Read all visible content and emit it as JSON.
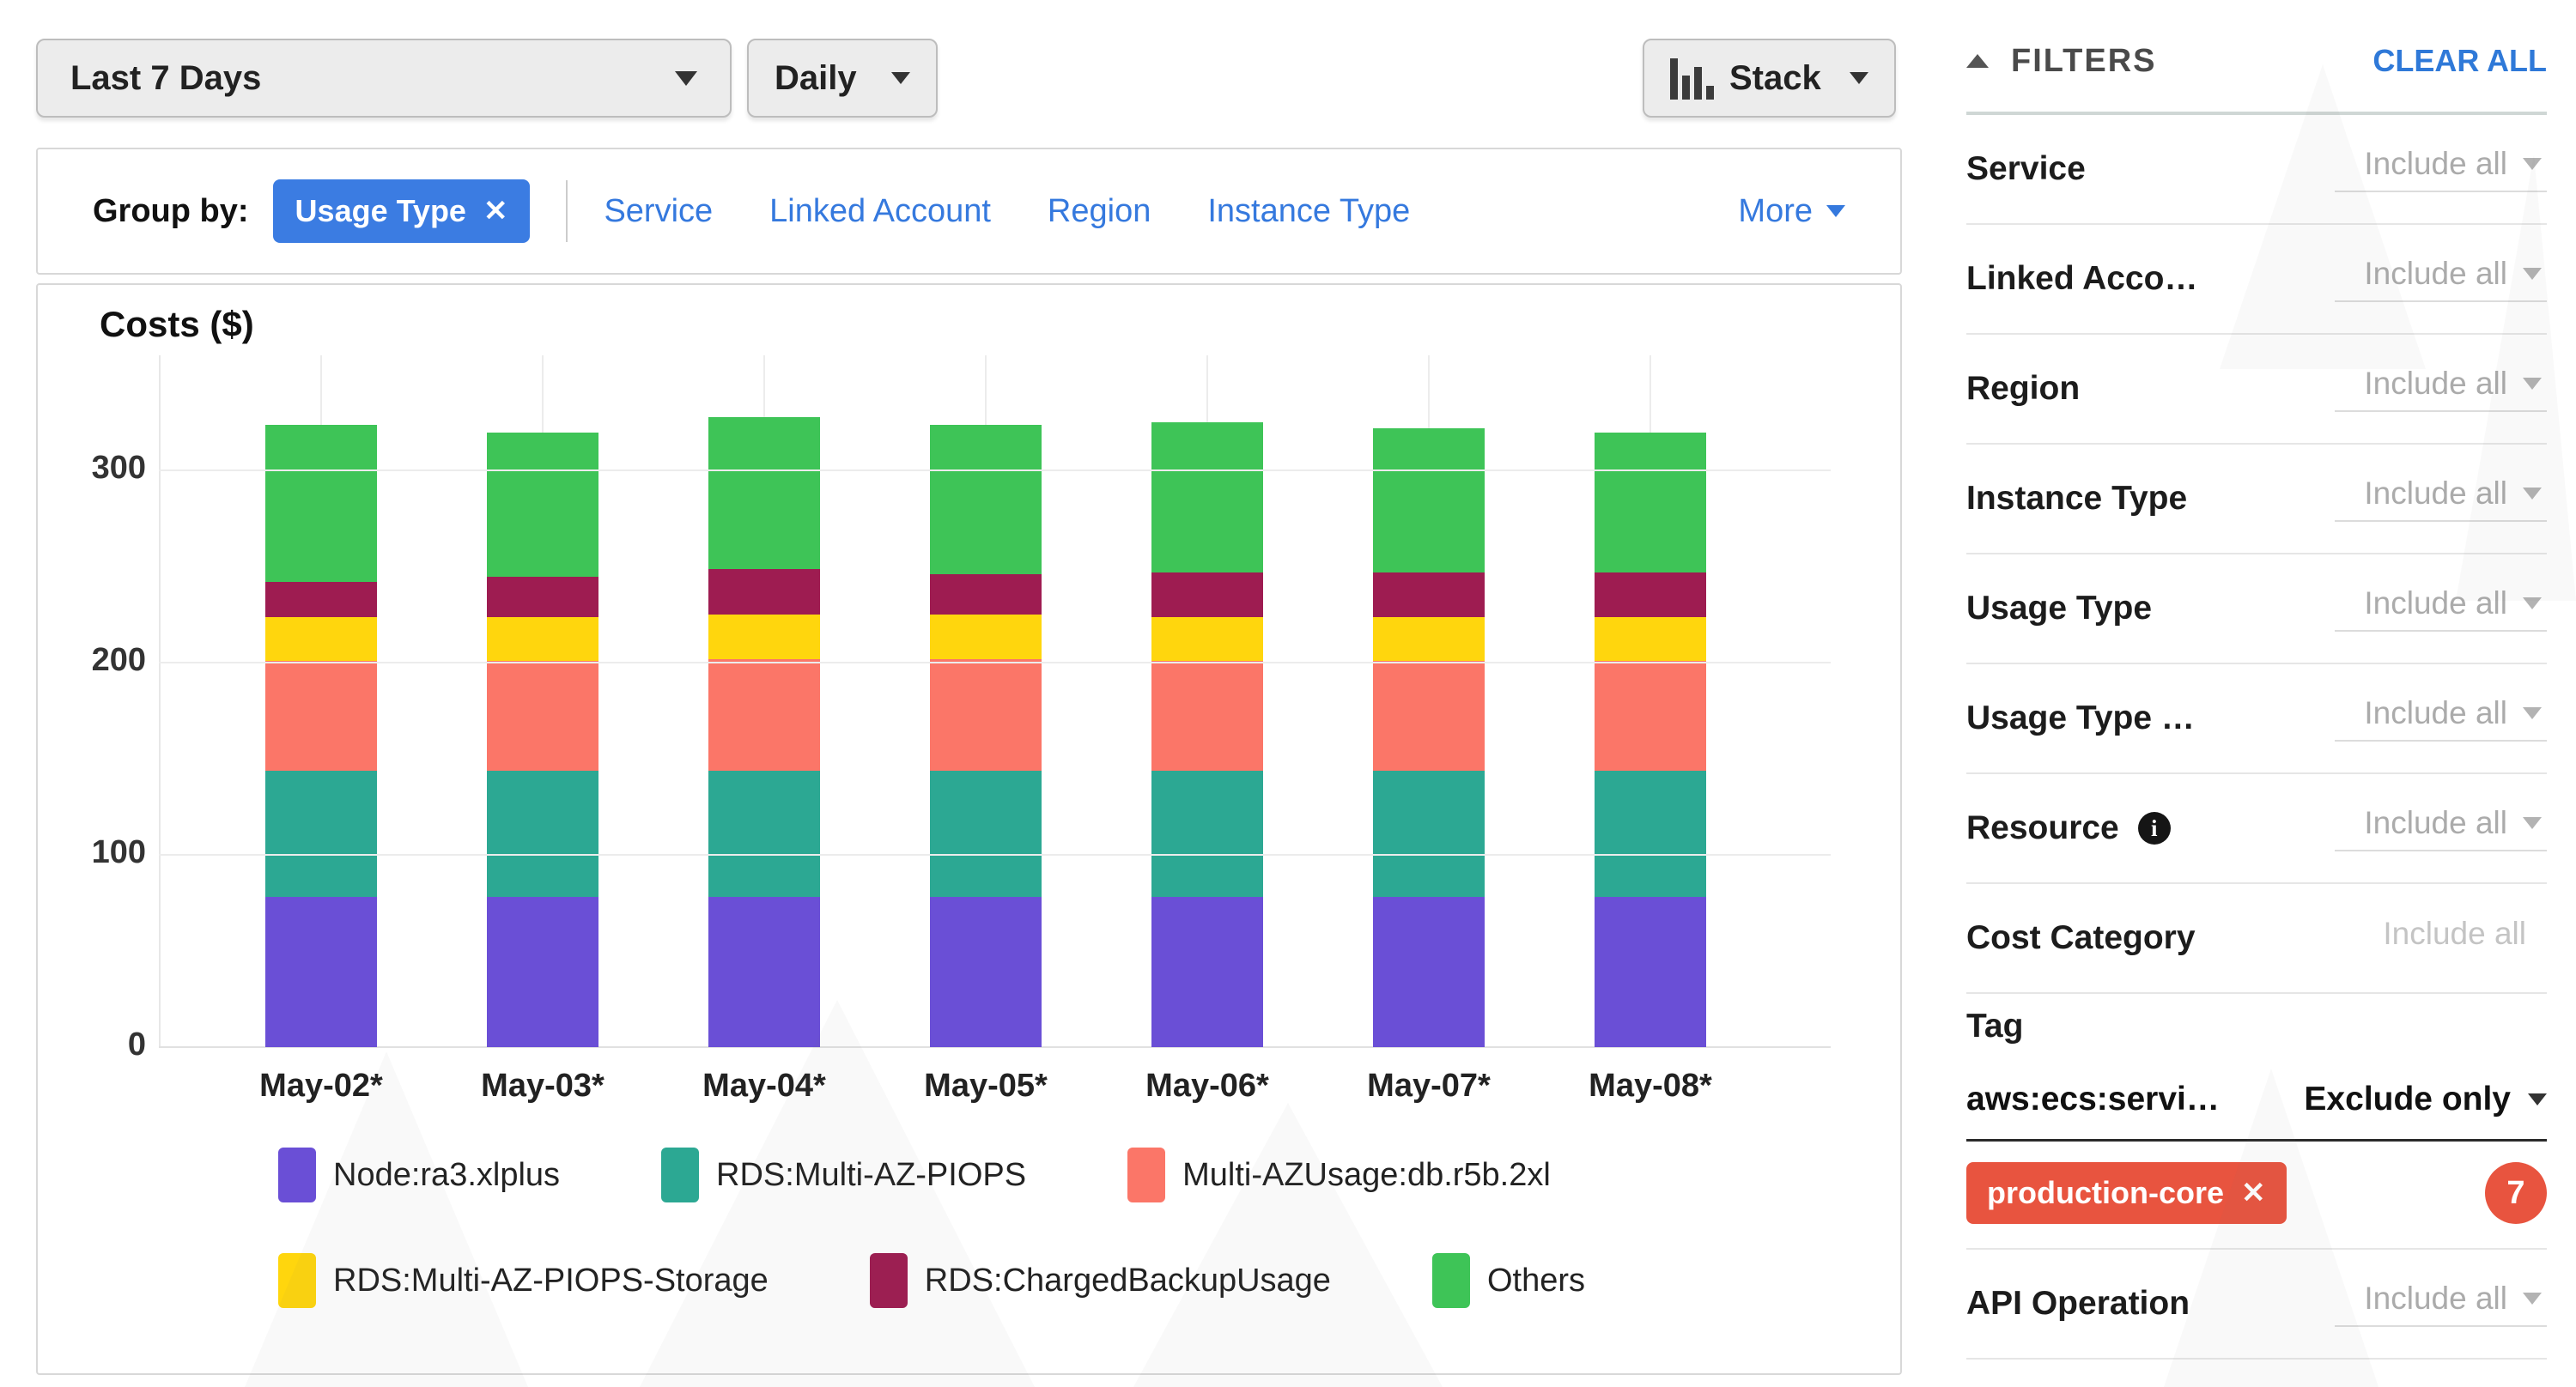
{
  "toolbar": {
    "date_range": "Last 7 Days",
    "granularity": "Daily",
    "chart_type": "Stack"
  },
  "group_by": {
    "label": "Group by:",
    "active_chip": "Usage Type",
    "remove_icon": "✕",
    "links": [
      "Service",
      "Linked Account",
      "Region",
      "Instance Type"
    ],
    "more_label": "More"
  },
  "chart_data": {
    "type": "bar",
    "stacked": true,
    "title": "Costs ($)",
    "ylabel": "Costs ($)",
    "categories": [
      "May-02*",
      "May-03*",
      "May-04*",
      "May-05*",
      "May-06*",
      "May-07*",
      "May-08*"
    ],
    "series": [
      {
        "name": "Node:ra3.xlplus",
        "color": "#6A4FD6",
        "values": [
          78,
          78,
          78,
          78,
          78,
          78,
          78
        ]
      },
      {
        "name": "RDS:Multi-AZ-PIOPS",
        "color": "#2CA893",
        "values": [
          66,
          66,
          66,
          66,
          66,
          66,
          66
        ]
      },
      {
        "name": "Multi-AZUsage:db.r5b.2xl",
        "color": "#FB7668",
        "values": [
          57,
          57,
          58,
          58,
          57,
          57,
          57
        ]
      },
      {
        "name": "RDS:Multi-AZ-PIOPS-Storage",
        "color": "#FFD60D",
        "values": [
          23,
          23,
          23,
          23,
          23,
          23,
          23
        ]
      },
      {
        "name": "RDS:ChargedBackupUsage",
        "color": "#9E1C51",
        "values": [
          18,
          21,
          24,
          21,
          23,
          23,
          23
        ]
      },
      {
        "name": "Others",
        "color": "#3EC457",
        "values": [
          82,
          75,
          79,
          78,
          78,
          75,
          73
        ]
      }
    ],
    "ylim": [
      0,
      360
    ],
    "yticks": [
      0,
      100,
      200,
      300
    ],
    "grid": true,
    "legend_position": "bottom",
    "legend_rows": [
      [
        0,
        1,
        2
      ],
      [
        3,
        4,
        5
      ]
    ]
  },
  "filters_panel": {
    "title": "FILTERS",
    "clear_all_label": "CLEAR ALL",
    "include_all_label": "Include all",
    "rows": [
      {
        "label": "Service",
        "value": "Include all",
        "style": "dropdown",
        "info_icon": false
      },
      {
        "label": "Linked Acco…",
        "value": "Include all",
        "style": "dropdown",
        "info_icon": false
      },
      {
        "label": "Region",
        "value": "Include all",
        "style": "dropdown",
        "info_icon": false
      },
      {
        "label": "Instance Type",
        "value": "Include all",
        "style": "dropdown",
        "info_icon": false
      },
      {
        "label": "Usage Type",
        "value": "Include all",
        "style": "dropdown",
        "info_icon": false
      },
      {
        "label": "Usage Type …",
        "value": "Include all",
        "style": "dropdown",
        "info_icon": false
      },
      {
        "label": "Resource",
        "value": "Include all",
        "style": "dropdown",
        "info_icon": true
      },
      {
        "label": "Cost Category",
        "value": "Include all",
        "style": "plain",
        "info_icon": false
      }
    ],
    "tag_section": {
      "label": "Tag",
      "tag_key": "aws:ecs:servi…",
      "mode": "Exclude only",
      "chip": "production-core",
      "chip_remove_icon": "✕",
      "badge_count": "7"
    },
    "bottom_rows": [
      {
        "label": "API Operation",
        "value": "Include all",
        "style": "dropdown",
        "info_icon": false
      }
    ]
  },
  "colors": {
    "link_blue": "#3579DE",
    "chip_blue": "#3B7CE2",
    "chip_red": "#E8543F",
    "clear_all_blue": "#2F79D8"
  }
}
